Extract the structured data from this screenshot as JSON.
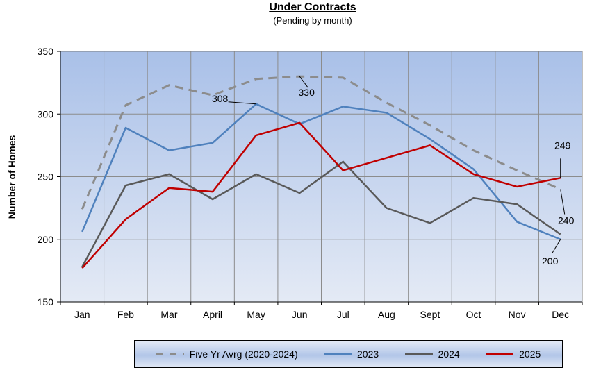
{
  "chart_data": {
    "type": "line",
    "title": "Under Contracts",
    "subtitle": "(Pending by month)",
    "ylabel": "Number of Homes",
    "xlabel": "",
    "ylim": [
      150,
      350
    ],
    "yticks": [
      150,
      200,
      250,
      300,
      350
    ],
    "categories": [
      "Jan",
      "Feb",
      "Mar",
      "April",
      "May",
      "Jun",
      "Jul",
      "Aug",
      "Sept",
      "Oct",
      "Nov",
      "Dec"
    ],
    "grid": true,
    "legend_position": "bottom",
    "series": [
      {
        "name": "Five Yr Avrg (2020-2024)",
        "color": "#8c8c8c",
        "dash": true,
        "values": [
          224,
          307,
          323,
          315,
          328,
          330,
          329,
          309,
          291,
          271,
          255,
          240
        ]
      },
      {
        "name": "2023",
        "color": "#4f81bd",
        "dash": false,
        "values": [
          206,
          289,
          271,
          277,
          308,
          292,
          306,
          301,
          280,
          256,
          214,
          200
        ]
      },
      {
        "name": "2024",
        "color": "#595959",
        "dash": false,
        "values": [
          178,
          243,
          252,
          232,
          252,
          237,
          262,
          225,
          213,
          233,
          228,
          204
        ]
      },
      {
        "name": "2025",
        "color": "#c00000",
        "dash": false,
        "values": [
          177,
          216,
          241,
          238,
          283,
          293,
          255,
          265,
          275,
          252,
          242,
          249
        ]
      }
    ],
    "annotations": [
      {
        "text": "308",
        "series": 1,
        "index": 4
      },
      {
        "text": "330",
        "series": 0,
        "index": 5
      },
      {
        "text": "249",
        "series": 3,
        "index": 11
      },
      {
        "text": "240",
        "series": 0,
        "index": 11
      },
      {
        "text": "200",
        "series": 1,
        "index": 11
      }
    ]
  }
}
